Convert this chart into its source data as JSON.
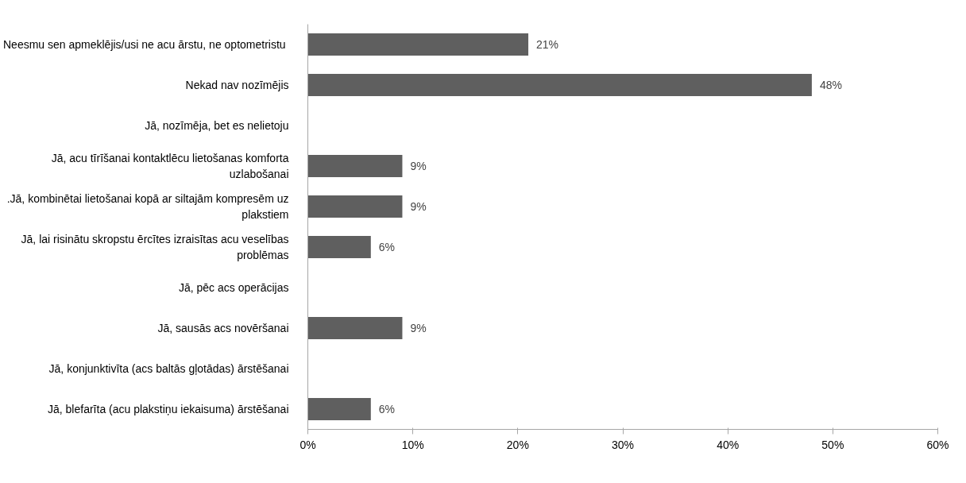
{
  "chart_data": {
    "type": "bar",
    "orientation": "horizontal",
    "categories": [
      "Neesmu sen apmeklējis/usi ne acu  ārstu, ne optometristu",
      "Nekad nav nozīmējis",
      "Jā, nozīmēja, bet es nelietoju",
      "Jā, acu tīrīšanai kontaktlēcu lietošanas komforta uzlabošanai",
      ".Jā, kombinētai lietošanai kopā ar siltajām kompresēm uz plakstiem",
      "Jā, lai risinātu skropstu ērcītes izraisītas acu veselības problēmas",
      "Jā, pēc acs operācijas",
      "Jā, sausās acs novēršanai",
      "Jā, konjunktivīta (acs baltās gļotādas) ārstēšanai",
      "Jā, blefarīta (acu plakstiņu iekaisuma) ārstēšanai"
    ],
    "values": [
      21,
      48,
      null,
      9,
      9,
      6,
      null,
      9,
      null,
      6
    ],
    "value_labels": [
      "21%",
      "48%",
      null,
      "9%",
      "9%",
      "6%",
      null,
      "9%",
      null,
      "6%"
    ],
    "color": "#5f5f5f",
    "xlim": [
      0,
      60
    ],
    "xticks": [
      {
        "value": 0,
        "label": "0%"
      },
      {
        "value": 10,
        "label": "10%"
      },
      {
        "value": 20,
        "label": "20%"
      },
      {
        "value": 30,
        "label": "30%"
      },
      {
        "value": 40,
        "label": "40%"
      },
      {
        "value": 50,
        "label": "50%"
      },
      {
        "value": 60,
        "label": "60%"
      }
    ],
    "grid": false
  }
}
